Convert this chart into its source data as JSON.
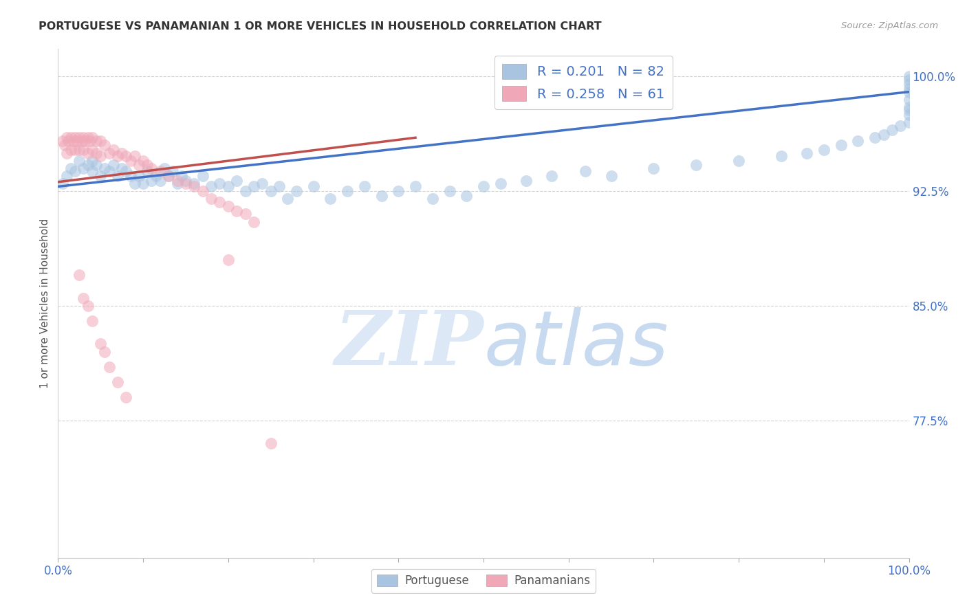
{
  "title": "PORTUGUESE VS PANAMANIAN 1 OR MORE VEHICLES IN HOUSEHOLD CORRELATION CHART",
  "source": "Source: ZipAtlas.com",
  "ylabel": "1 or more Vehicles in Household",
  "xlim": [
    0.0,
    1.0
  ],
  "ylim": [
    0.685,
    1.018
  ],
  "yticks": [
    0.775,
    0.85,
    0.925,
    1.0
  ],
  "ytick_labels": [
    "77.5%",
    "85.0%",
    "92.5%",
    "100.0%"
  ],
  "legend_labels_blue": "R = 0.201   N = 82",
  "legend_labels_pink": "R = 0.258   N = 61",
  "portuguese_color": "#a8c4e0",
  "panamanian_color": "#f0a8b8",
  "trendline_portuguese_color": "#4472c4",
  "trendline_panamanian_color": "#c0504d",
  "background_color": "#ffffff",
  "watermark_color": "#dce8f5",
  "portuguese_x": [
    0.005,
    0.01,
    0.015,
    0.02,
    0.025,
    0.03,
    0.035,
    0.04,
    0.04,
    0.045,
    0.05,
    0.055,
    0.06,
    0.065,
    0.07,
    0.075,
    0.08,
    0.085,
    0.09,
    0.095,
    0.1,
    0.105,
    0.11,
    0.115,
    0.12,
    0.125,
    0.13,
    0.135,
    0.14,
    0.145,
    0.15,
    0.16,
    0.17,
    0.18,
    0.19,
    0.2,
    0.21,
    0.22,
    0.23,
    0.24,
    0.25,
    0.26,
    0.27,
    0.28,
    0.3,
    0.32,
    0.34,
    0.36,
    0.38,
    0.4,
    0.42,
    0.44,
    0.46,
    0.48,
    0.5,
    0.52,
    0.55,
    0.58,
    0.62,
    0.65,
    0.7,
    0.75,
    0.8,
    0.85,
    0.88,
    0.9,
    0.92,
    0.94,
    0.96,
    0.97,
    0.98,
    0.99,
    1.0,
    1.0,
    1.0,
    1.0,
    1.0,
    1.0,
    1.0,
    1.0,
    1.0,
    1.0
  ],
  "portuguese_y": [
    0.93,
    0.935,
    0.94,
    0.938,
    0.945,
    0.94,
    0.942,
    0.938,
    0.945,
    0.942,
    0.935,
    0.94,
    0.938,
    0.942,
    0.935,
    0.94,
    0.938,
    0.935,
    0.93,
    0.935,
    0.93,
    0.938,
    0.932,
    0.935,
    0.932,
    0.94,
    0.935,
    0.938,
    0.93,
    0.935,
    0.932,
    0.93,
    0.935,
    0.928,
    0.93,
    0.928,
    0.932,
    0.925,
    0.928,
    0.93,
    0.925,
    0.928,
    0.92,
    0.925,
    0.928,
    0.92,
    0.925,
    0.928,
    0.922,
    0.925,
    0.928,
    0.92,
    0.925,
    0.922,
    0.928,
    0.93,
    0.932,
    0.935,
    0.938,
    0.935,
    0.94,
    0.942,
    0.945,
    0.948,
    0.95,
    0.952,
    0.955,
    0.958,
    0.96,
    0.962,
    0.965,
    0.968,
    0.97,
    0.975,
    0.978,
    0.98,
    0.985,
    0.99,
    0.992,
    0.995,
    0.998,
    1.0
  ],
  "panamanian_x": [
    0.005,
    0.008,
    0.01,
    0.01,
    0.012,
    0.015,
    0.015,
    0.018,
    0.02,
    0.02,
    0.022,
    0.025,
    0.025,
    0.028,
    0.03,
    0.03,
    0.032,
    0.035,
    0.035,
    0.038,
    0.04,
    0.04,
    0.045,
    0.045,
    0.05,
    0.05,
    0.055,
    0.06,
    0.065,
    0.07,
    0.075,
    0.08,
    0.085,
    0.09,
    0.095,
    0.1,
    0.105,
    0.11,
    0.12,
    0.13,
    0.14,
    0.15,
    0.16,
    0.17,
    0.18,
    0.19,
    0.2,
    0.21,
    0.22,
    0.23,
    0.025,
    0.03,
    0.035,
    0.04,
    0.05,
    0.055,
    0.06,
    0.07,
    0.08,
    0.2,
    0.25
  ],
  "panamanian_y": [
    0.958,
    0.955,
    0.96,
    0.95,
    0.958,
    0.96,
    0.952,
    0.958,
    0.96,
    0.952,
    0.958,
    0.96,
    0.952,
    0.958,
    0.96,
    0.952,
    0.958,
    0.96,
    0.95,
    0.958,
    0.96,
    0.952,
    0.958,
    0.95,
    0.958,
    0.948,
    0.955,
    0.95,
    0.952,
    0.948,
    0.95,
    0.948,
    0.945,
    0.948,
    0.942,
    0.945,
    0.942,
    0.94,
    0.938,
    0.935,
    0.932,
    0.93,
    0.928,
    0.925,
    0.92,
    0.918,
    0.915,
    0.912,
    0.91,
    0.905,
    0.87,
    0.855,
    0.85,
    0.84,
    0.825,
    0.82,
    0.81,
    0.8,
    0.79,
    0.88,
    0.76
  ],
  "trendline_blue_x0": 0.0,
  "trendline_blue_y0": 0.928,
  "trendline_blue_x1": 1.0,
  "trendline_blue_y1": 0.99,
  "trendline_pink_x0": 0.0,
  "trendline_pink_y0": 0.931,
  "trendline_pink_x1": 0.42,
  "trendline_pink_y1": 0.96
}
